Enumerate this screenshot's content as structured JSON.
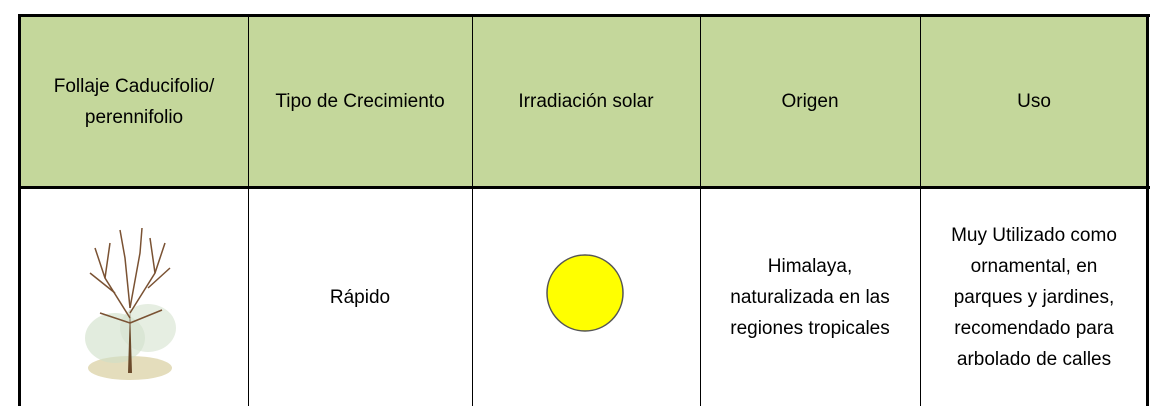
{
  "table": {
    "header": [
      [
        "Follaje Caducifolio/",
        "perennifolio"
      ],
      [
        "Tipo de Crecimiento"
      ],
      [
        "Irradiación solar"
      ],
      [
        "Origen"
      ],
      [
        "Uso"
      ]
    ],
    "rows": [
      [
        [],
        [
          "Rápido"
        ],
        [],
        [
          "Himalaya,",
          "naturalizada en las",
          "regiones tropicales"
        ],
        [
          "Muy Utilizado como",
          "ornamental, en",
          "parques y jardines,",
          "recomendado para",
          "arbolado de calles"
        ]
      ]
    ]
  }
}
